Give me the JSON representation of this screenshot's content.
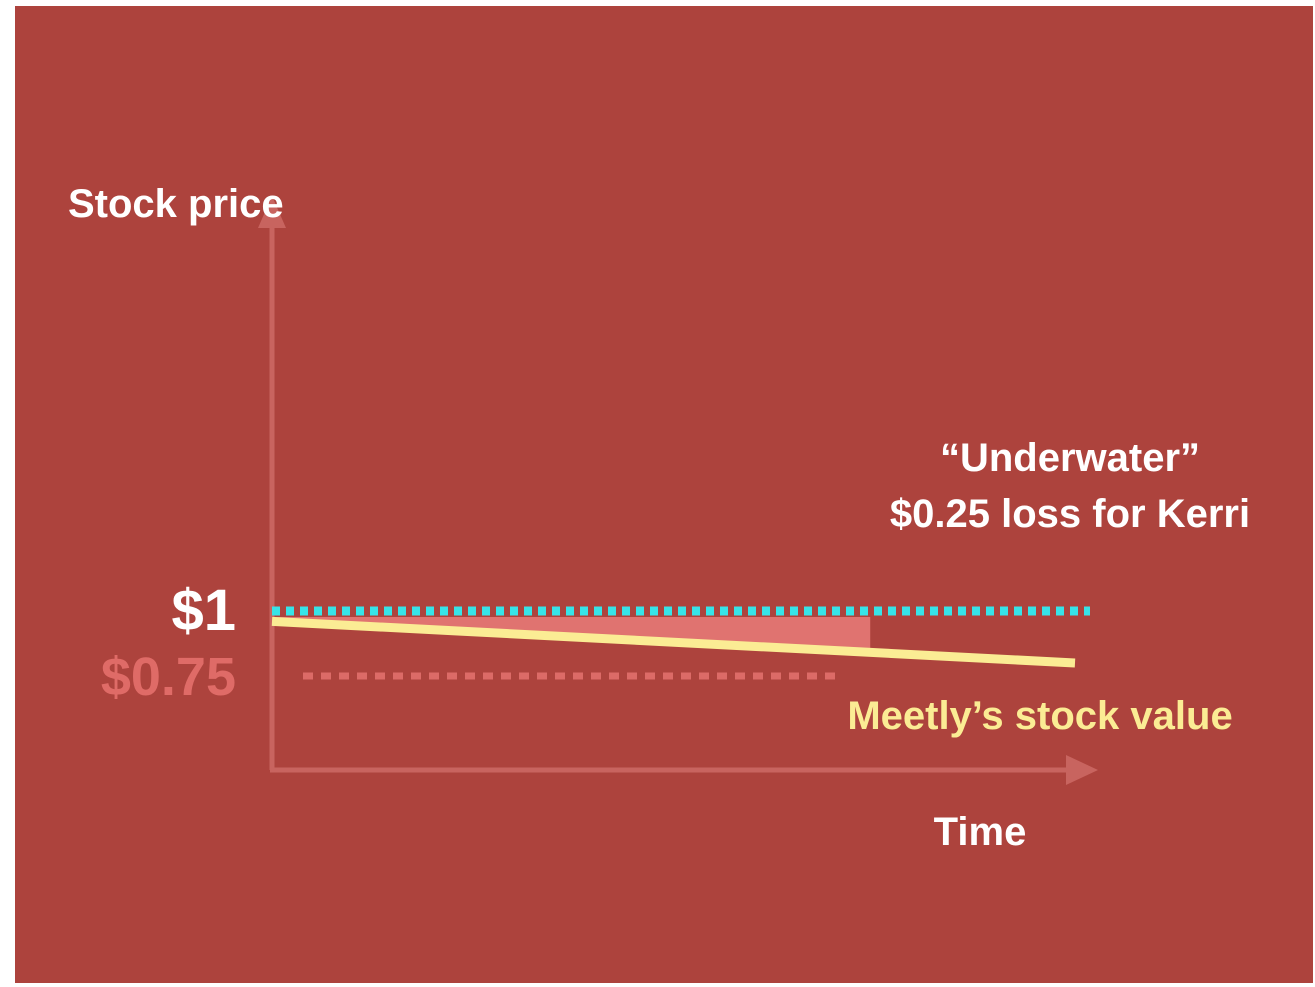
{
  "colors": {
    "background": "#ad433d",
    "axis": "#c8645f",
    "strike_line": "#37e4e8",
    "current_line": "#dc6b67",
    "stock_line": "#fbec94",
    "loss_area": "#e07370",
    "text": "#ffffff"
  },
  "chart_data": {
    "type": "line",
    "ylabel": "Stock price",
    "xlabel": "Time",
    "y_ticks": [
      {
        "label": "$1",
        "value": 1.0
      },
      {
        "label": "$0.75",
        "value": 0.75
      }
    ],
    "series": [
      {
        "name": "Meetly’s stock value",
        "x": [
          0,
          1
        ],
        "values": [
          0.96,
          0.8
        ]
      }
    ],
    "reference_lines": [
      {
        "value": 1.0,
        "style": "dotted",
        "color": "#37e4e8",
        "x_end": 1.0
      },
      {
        "value": 0.75,
        "style": "dotted",
        "color": "#dc6b67",
        "x_end": 0.71
      }
    ],
    "shaded_area": {
      "between": [
        1.0,
        "series"
      ],
      "x_range": [
        0,
        0.745
      ]
    },
    "annotation": {
      "line1": "“Underwater”",
      "line2": "$0.25 loss for Kerri"
    },
    "grid": false
  }
}
